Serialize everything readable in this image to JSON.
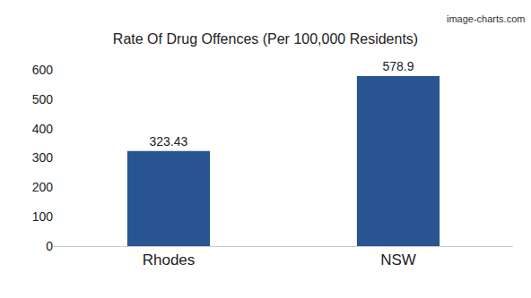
{
  "chart_data": {
    "type": "bar",
    "title": "Rate Of Drug Offences (Per 100,000 Residents)",
    "categories": [
      "Rhodes",
      "NSW"
    ],
    "values": [
      323.43,
      578.9
    ],
    "color": "#285491",
    "ylim": [
      0,
      600
    ],
    "yticks": [
      0,
      100,
      200,
      300,
      400,
      500,
      600
    ],
    "grid": false,
    "data_labels": true,
    "annotations": [
      {
        "text": "image-charts.com"
      }
    ]
  }
}
